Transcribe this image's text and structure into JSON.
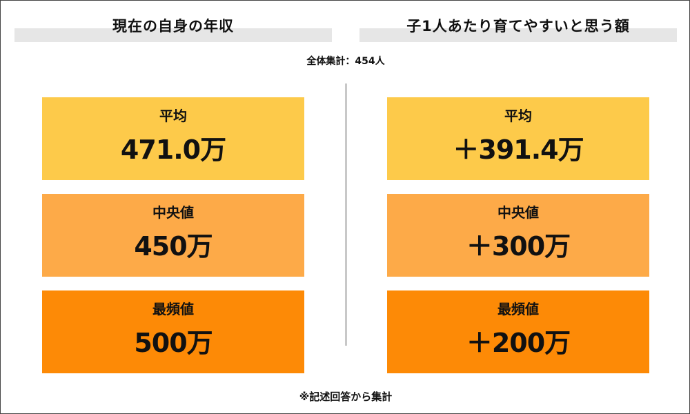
{
  "header": {
    "left_title": "現在の自身の年収",
    "right_title": "子1人あたり育てやすいと思う額"
  },
  "summary": "全体集計：454人",
  "left_cards": [
    {
      "label": "平均",
      "value": "471.0万"
    },
    {
      "label": "中央値",
      "value": "450万"
    },
    {
      "label": "最頻値",
      "value": "500万"
    }
  ],
  "right_cards": [
    {
      "label": "平均",
      "value": "＋391.4万"
    },
    {
      "label": "中央値",
      "value": "＋300万"
    },
    {
      "label": "最頻値",
      "value": "＋200万"
    }
  ],
  "footnote": "※記述回答から集計",
  "colors": {
    "average": "#fdca4a",
    "median": "#fdaa48",
    "mode": "#fd8a06",
    "header_bar": "#e6e6e6",
    "divider": "#c8c8c8"
  }
}
